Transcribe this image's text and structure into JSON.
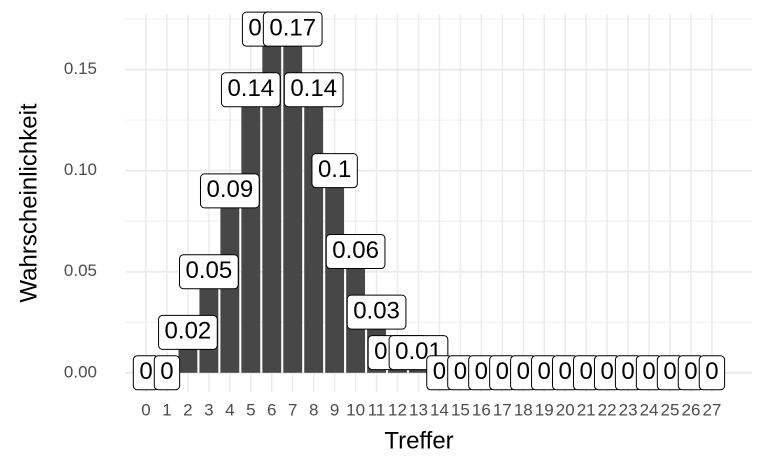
{
  "chart_data": {
    "type": "bar",
    "x_label": "Treffer",
    "y_label": "Wahrscheinlichkeit",
    "categories": [
      "0",
      "1",
      "2",
      "3",
      "4",
      "5",
      "6",
      "7",
      "8",
      "9",
      "10",
      "11",
      "12",
      "13",
      "14",
      "15",
      "16",
      "17",
      "18",
      "19",
      "20",
      "21",
      "22",
      "23",
      "24",
      "25",
      "26",
      "27"
    ],
    "values": [
      0,
      0,
      0.02,
      0.05,
      0.09,
      0.14,
      0.17,
      0.17,
      0.14,
      0.1,
      0.06,
      0.03,
      0.01,
      0.01,
      0,
      0,
      0,
      0,
      0,
      0,
      0,
      0,
      0,
      0,
      0,
      0,
      0,
      0
    ],
    "color": "#474747",
    "ylim": [
      -0.0095,
      0.1775
    ],
    "yticks": [
      {
        "value": 0,
        "label": "0.00"
      },
      {
        "value": 0.05,
        "label": "0.05"
      },
      {
        "value": 0.1,
        "label": "0.10"
      },
      {
        "value": 0.15,
        "label": "0.15"
      }
    ],
    "grid": true
  }
}
